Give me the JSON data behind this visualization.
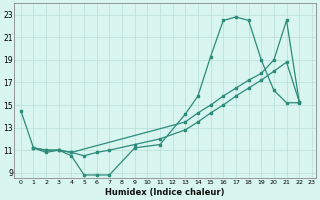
{
  "xlabel": "Humidex (Indice chaleur)",
  "background_color": "#d8f5ef",
  "line_color": "#2d8b7a",
  "grid_color": "#b8ddd8",
  "xlim": [
    -0.5,
    23.3
  ],
  "ylim": [
    8.5,
    24.0
  ],
  "xticks": [
    0,
    1,
    2,
    3,
    4,
    5,
    6,
    7,
    8,
    9,
    10,
    11,
    12,
    13,
    14,
    15,
    16,
    17,
    18,
    19,
    20,
    21,
    22,
    23
  ],
  "yticks": [
    9,
    11,
    13,
    15,
    17,
    19,
    21,
    23
  ],
  "series1_x": [
    0,
    1,
    2,
    3,
    4,
    5,
    6,
    7,
    9,
    11,
    13,
    14,
    15,
    16,
    17,
    18,
    19,
    20,
    21,
    22
  ],
  "series1_y": [
    14.5,
    11.2,
    10.8,
    11.0,
    10.5,
    8.8,
    8.8,
    8.8,
    11.2,
    11.5,
    14.2,
    15.8,
    19.3,
    22.5,
    22.8,
    22.5,
    19.0,
    16.3,
    15.2,
    15.2
  ],
  "series2_x": [
    1,
    2,
    3,
    4,
    5,
    6,
    7,
    9,
    11,
    13,
    14,
    15,
    16,
    17,
    18,
    19,
    20,
    21,
    22
  ],
  "series2_y": [
    11.2,
    11.0,
    11.0,
    10.8,
    10.5,
    10.8,
    11.0,
    11.5,
    12.0,
    12.8,
    13.5,
    14.3,
    15.0,
    15.8,
    16.5,
    17.2,
    18.0,
    18.8,
    15.3
  ],
  "series3_x": [
    1,
    2,
    3,
    4,
    13,
    14,
    15,
    16,
    17,
    18,
    19,
    20,
    21,
    22
  ],
  "series3_y": [
    11.2,
    11.0,
    11.0,
    10.8,
    13.5,
    14.3,
    15.0,
    15.8,
    16.5,
    17.2,
    17.8,
    19.0,
    22.5,
    15.3
  ]
}
